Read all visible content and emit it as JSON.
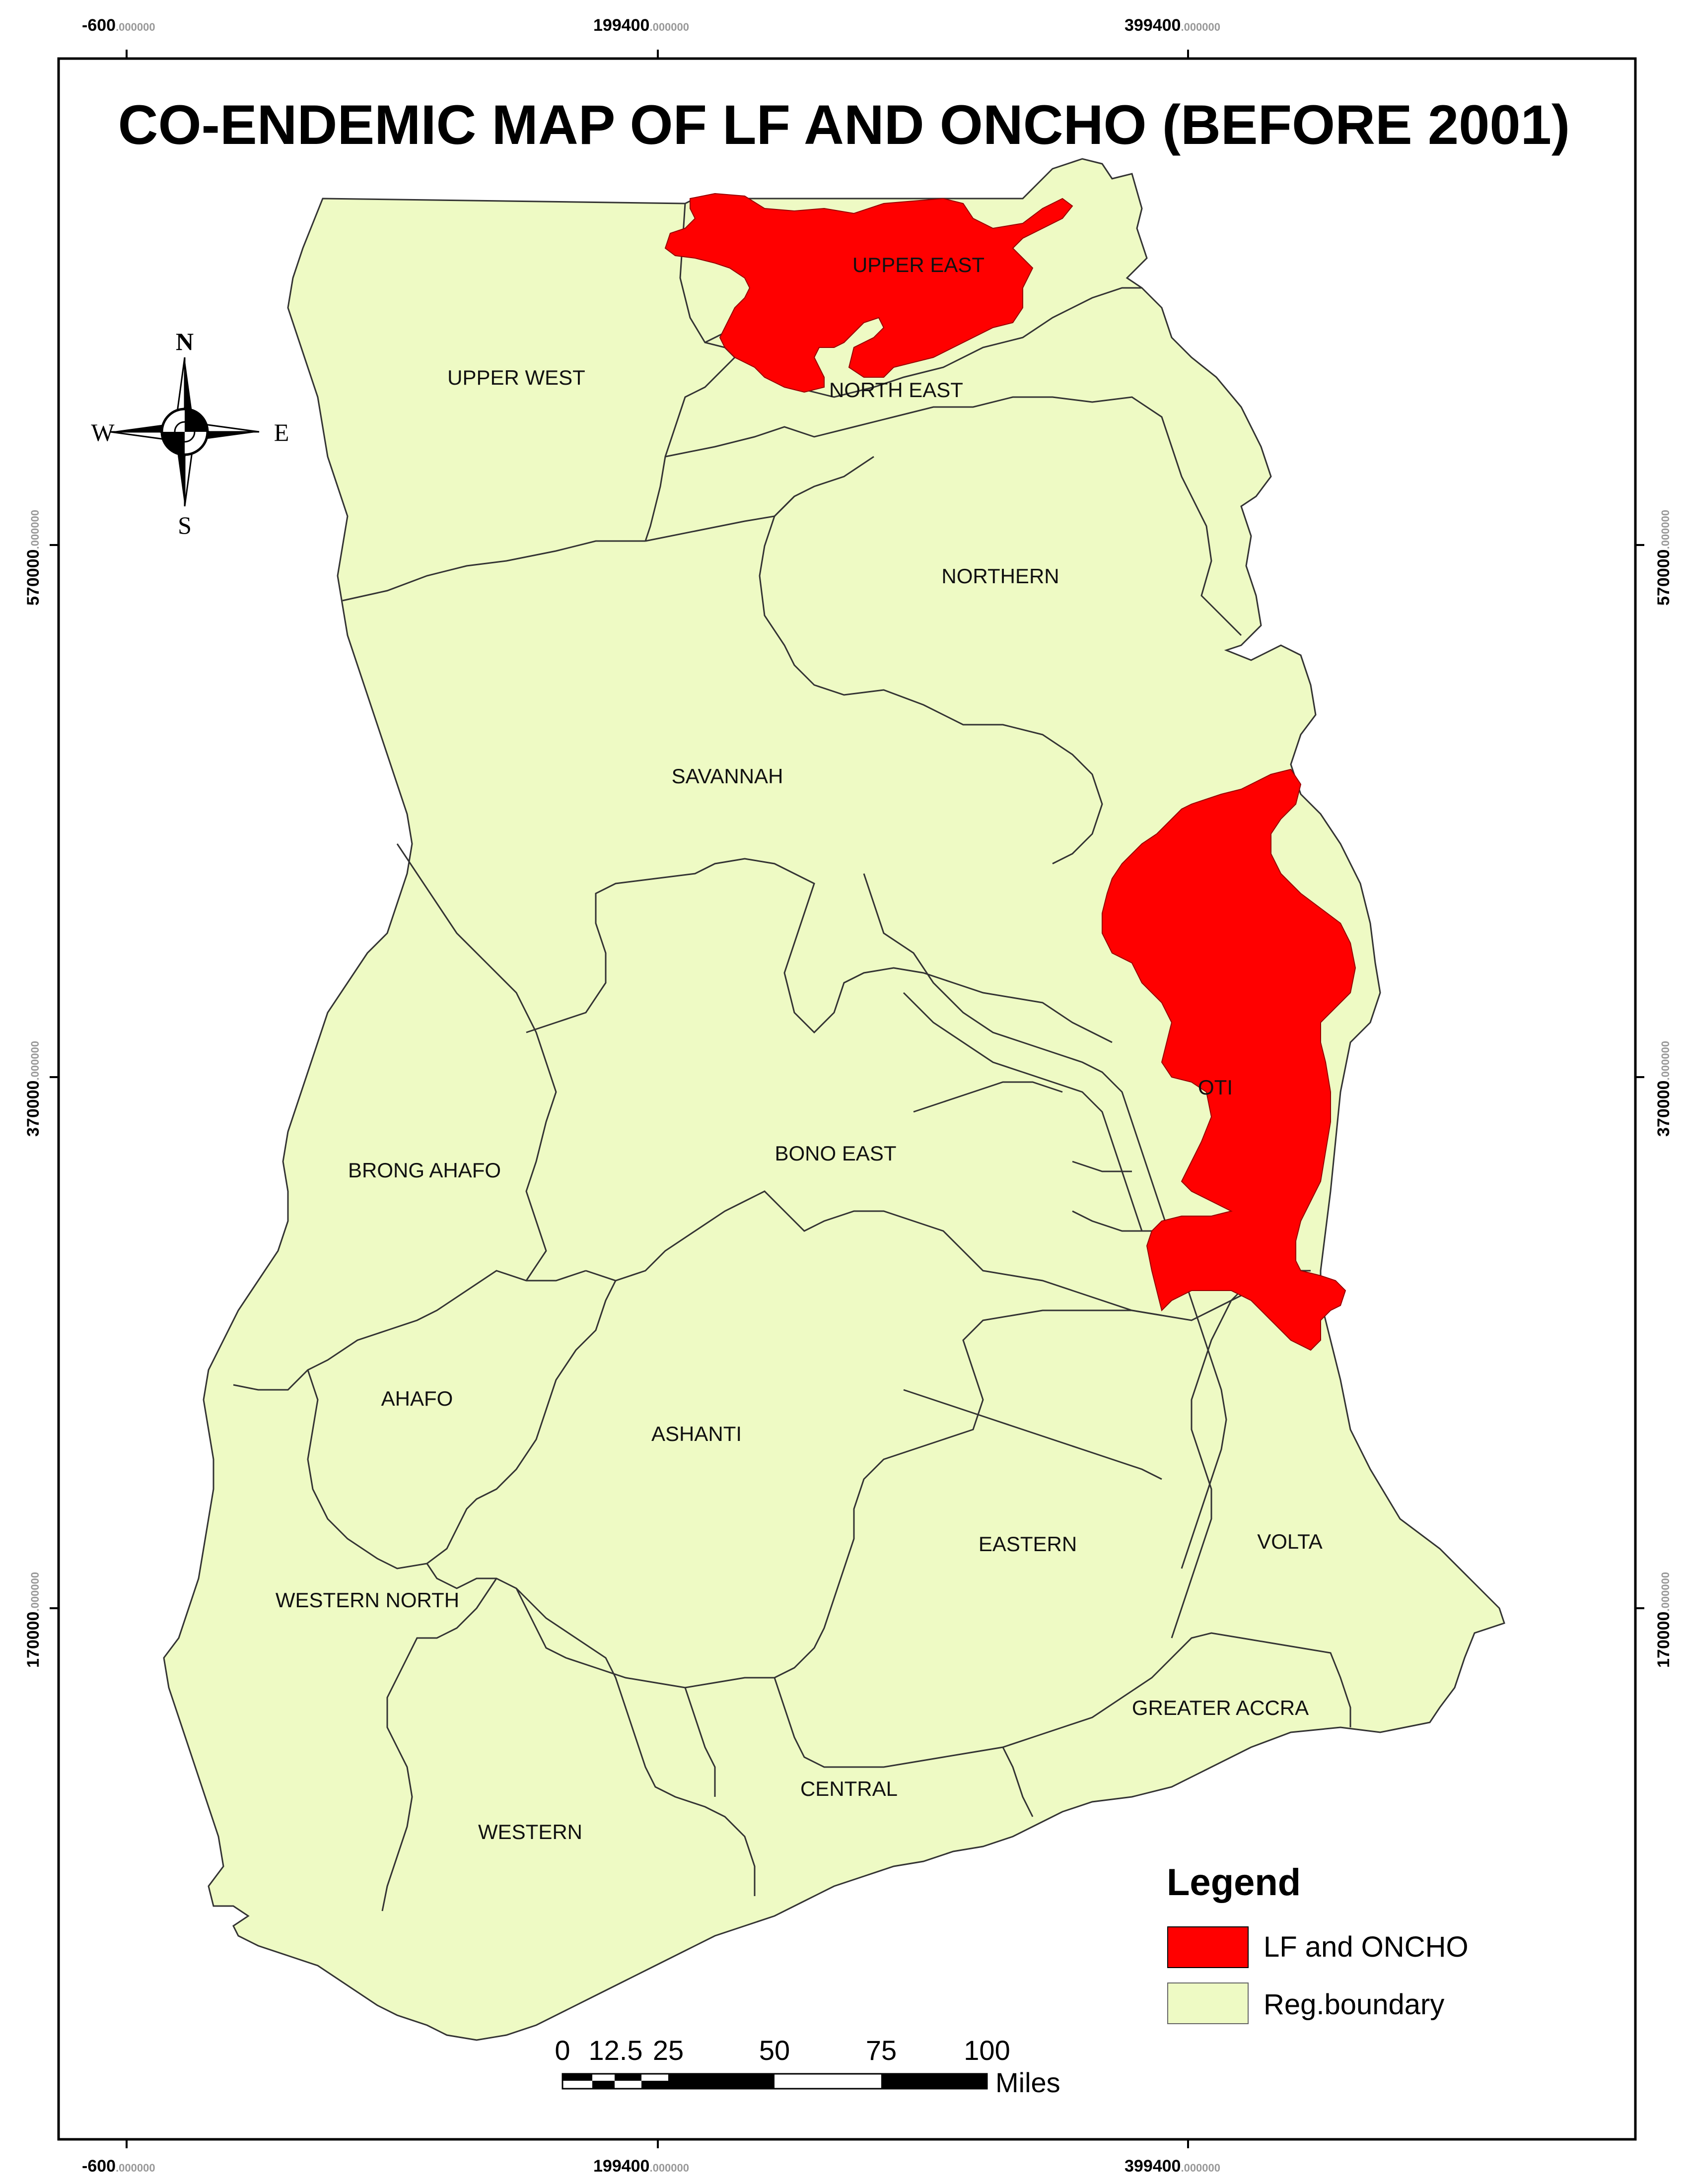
{
  "title": "CO-ENDEMIC MAP OF LF AND ONCHO (BEFORE 2001)",
  "colors": {
    "land": "#EEFAC4",
    "co_endemic": "#FF0000",
    "boundary": "#333333",
    "frame": "#000000"
  },
  "grid": {
    "x_ticks": [
      {
        "main": "-600",
        "dec": ".000000"
      },
      {
        "main": "199400",
        "dec": ".000000"
      },
      {
        "main": "399400",
        "dec": ".000000"
      }
    ],
    "y_ticks": [
      {
        "main": "570000",
        "dec": ".000000"
      },
      {
        "main": "370000",
        "dec": ".000000"
      },
      {
        "main": "170000",
        "dec": ".000000"
      }
    ]
  },
  "compass": {
    "n": "N",
    "s": "S",
    "e": "E",
    "w": "W"
  },
  "regions": [
    {
      "name": "UPPER EAST"
    },
    {
      "name": "UPPER WEST"
    },
    {
      "name": "NORTH EAST"
    },
    {
      "name": "NORTHERN"
    },
    {
      "name": "SAVANNAH"
    },
    {
      "name": "OTI"
    },
    {
      "name": "BRONG AHAFO"
    },
    {
      "name": "BONO EAST"
    },
    {
      "name": "AHAFO"
    },
    {
      "name": "ASHANTI"
    },
    {
      "name": "EASTERN"
    },
    {
      "name": "VOLTA"
    },
    {
      "name": "WESTERN NORTH"
    },
    {
      "name": "GREATER ACCRA"
    },
    {
      "name": "CENTRAL"
    },
    {
      "name": "WESTERN"
    }
  ],
  "legend": {
    "title": "Legend",
    "items": [
      {
        "label": "LF and ONCHO",
        "color": "#FF0000"
      },
      {
        "label": "Reg.boundary",
        "color": "#EEFAC4"
      }
    ]
  },
  "scale_bar": {
    "labels": [
      "0",
      "12.5",
      "25",
      "50",
      "75",
      "100"
    ],
    "unit": "Miles"
  }
}
